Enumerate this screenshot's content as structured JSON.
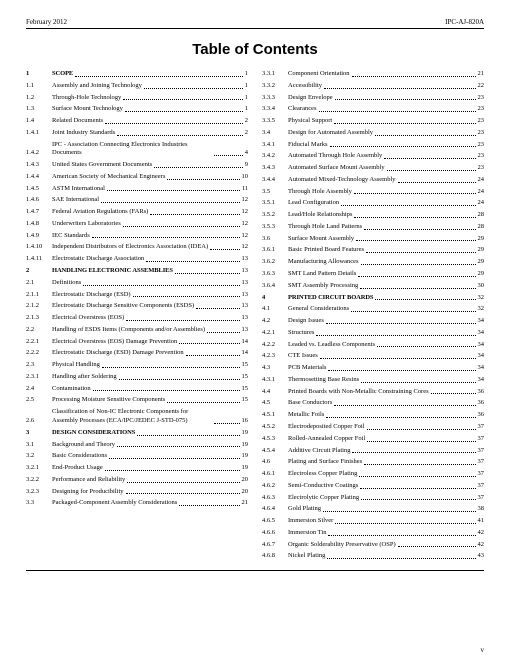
{
  "header": {
    "left": "February 2012",
    "right": "IPC-AJ-820A"
  },
  "title": "Table of Contents",
  "footer_marker": "v",
  "left_column": [
    {
      "t": "section",
      "num": "1",
      "text": "SCOPE",
      "page": "1"
    },
    {
      "t": "entry",
      "num": "1.1",
      "text": "Assembly and Joining Technology",
      "page": "1"
    },
    {
      "t": "entry",
      "num": "1.2",
      "text": "Through-Hole Technology",
      "page": "1"
    },
    {
      "t": "entry",
      "num": "1.3",
      "text": "Surface Mount Technology",
      "page": "1"
    },
    {
      "t": "entry",
      "num": "1.4",
      "text": "Related Documents",
      "page": "2"
    },
    {
      "t": "entry",
      "num": "1.4.1",
      "text": "Joint Industry Standards",
      "page": "2"
    },
    {
      "t": "entry",
      "num": "1.4.2",
      "text": "IPC - Association Connecting Electronics Industries Documents",
      "page": "4"
    },
    {
      "t": "entry",
      "num": "1.4.3",
      "text": "United States Government Documents",
      "page": "9"
    },
    {
      "t": "entry",
      "num": "1.4.4",
      "text": "American Society of Mechanical Engineers",
      "page": "10"
    },
    {
      "t": "entry",
      "num": "1.4.5",
      "text": "ASTM International",
      "page": "11"
    },
    {
      "t": "entry",
      "num": "1.4.6",
      "text": "SAE International",
      "page": "12"
    },
    {
      "t": "entry",
      "num": "1.4.7",
      "text": "Federal Aviation Regulations (FARs)",
      "page": "12"
    },
    {
      "t": "entry",
      "num": "1.4.8",
      "text": "Underwriters Laboratories",
      "page": "12"
    },
    {
      "t": "entry",
      "num": "1.4.9",
      "text": "IEC Standards",
      "page": "12"
    },
    {
      "t": "entry",
      "num": "1.4.10",
      "text": "Independent Distributors of Electronics Association (IDEA)",
      "page": "12"
    },
    {
      "t": "entry",
      "num": "1.4.11",
      "text": "Electrostatic Discharge Association",
      "page": "13"
    },
    {
      "t": "section",
      "num": "2",
      "text": "HANDLING ELECTRONIC ASSEMBLIES",
      "page": "13"
    },
    {
      "t": "entry",
      "num": "2.1",
      "text": "Definitions",
      "page": "13"
    },
    {
      "t": "entry",
      "num": "2.1.1",
      "text": "Electrostatic Discharge (ESD)",
      "page": "13"
    },
    {
      "t": "entry",
      "num": "2.1.2",
      "text": "Electrostatic Discharge Sensitive Components (ESDS)",
      "page": "13"
    },
    {
      "t": "entry",
      "num": "2.1.3",
      "text": "Electrical Overstress (EOS)",
      "page": "13"
    },
    {
      "t": "entry",
      "num": "2.2",
      "text": "Handling of ESDS Items (Components and/or Assemblies)",
      "page": "13"
    },
    {
      "t": "entry",
      "num": "2.2.1",
      "text": "Electrical Overstress (EOS) Damage Prevention",
      "page": "14"
    },
    {
      "t": "entry",
      "num": "2.2.2",
      "text": "Electrostatic Discharge (ESD) Damage Prevention",
      "page": "14"
    },
    {
      "t": "entry",
      "num": "2.3",
      "text": "Physical Handling",
      "page": "15"
    },
    {
      "t": "entry",
      "num": "2.3.1",
      "text": "Handling after Soldering",
      "page": "15"
    },
    {
      "t": "entry",
      "num": "2.4",
      "text": "Contamination",
      "page": "15"
    },
    {
      "t": "entry",
      "num": "2.5",
      "text": "Processing Moisture Sensitive Components",
      "page": "15"
    },
    {
      "t": "entry",
      "num": "2.6",
      "text": "Classification of Non-IC Electronic Components for Assembly Processes (ECA/IPC/JEDEC J-STD-075)",
      "page": "16"
    },
    {
      "t": "section",
      "num": "3",
      "text": "DESIGN CONSIDERATIONS",
      "page": "19"
    },
    {
      "t": "entry",
      "num": "3.1",
      "text": "Background and Theory",
      "page": "19"
    },
    {
      "t": "entry",
      "num": "3.2",
      "text": "Basic Considerations",
      "page": "19"
    },
    {
      "t": "entry",
      "num": "3.2.1",
      "text": "End-Product Usage",
      "page": "19"
    },
    {
      "t": "entry",
      "num": "3.2.2",
      "text": "Performance and Reliability",
      "page": "20"
    },
    {
      "t": "entry",
      "num": "3.2.3",
      "text": "Designing for Producibility",
      "page": "20"
    },
    {
      "t": "entry",
      "num": "3.3",
      "text": "Packaged-Component Assembly Considerations",
      "page": "21"
    }
  ],
  "right_column": [
    {
      "t": "entry",
      "num": "3.3.1",
      "text": "Component Orientation",
      "page": "21"
    },
    {
      "t": "entry",
      "num": "3.3.2",
      "text": "Accessibility",
      "page": "22"
    },
    {
      "t": "entry",
      "num": "3.3.3",
      "text": "Design Envelope",
      "page": "23"
    },
    {
      "t": "entry",
      "num": "3.3.4",
      "text": "Clearances",
      "page": "23"
    },
    {
      "t": "entry",
      "num": "3.3.5",
      "text": "Physical Support",
      "page": "23"
    },
    {
      "t": "entry",
      "num": "3.4",
      "text": "Design for Automated Assembly",
      "page": "23"
    },
    {
      "t": "entry",
      "num": "3.4.1",
      "text": "Fiducial Marks",
      "page": "23"
    },
    {
      "t": "entry",
      "num": "3.4.2",
      "text": "Automated Through Hole Assembly",
      "page": "23"
    },
    {
      "t": "entry",
      "num": "3.4.3",
      "text": "Automated Surface Mount Assembly",
      "page": "23"
    },
    {
      "t": "entry",
      "num": "3.4.4",
      "text": "Automated Mixed-Technology Assembly",
      "page": "24"
    },
    {
      "t": "entry",
      "num": "3.5",
      "text": "Through Hole Assembly",
      "page": "24"
    },
    {
      "t": "entry",
      "num": "3.5.1",
      "text": "Lead Configuration",
      "page": "24"
    },
    {
      "t": "entry",
      "num": "3.5.2",
      "text": "Lead/Hole Relationships",
      "page": "28"
    },
    {
      "t": "entry",
      "num": "3.5.3",
      "text": "Through Hole Land Patterns",
      "page": "28"
    },
    {
      "t": "entry",
      "num": "3.6",
      "text": "Surface Mount Assembly",
      "page": "29"
    },
    {
      "t": "entry",
      "num": "3.6.1",
      "text": "Basic Printed Board Features",
      "page": "29"
    },
    {
      "t": "entry",
      "num": "3.6.2",
      "text": "Manufacturing Allowances",
      "page": "29"
    },
    {
      "t": "entry",
      "num": "3.6.3",
      "text": "SMT Land Pattern Details",
      "page": "29"
    },
    {
      "t": "entry",
      "num": "3.6.4",
      "text": "SMT Assembly Processing",
      "page": "30"
    },
    {
      "t": "section",
      "num": "4",
      "text": "PRINTED CIRCUIT BOARDS",
      "page": "32"
    },
    {
      "t": "entry",
      "num": "4.1",
      "text": "General Considerations",
      "page": "32"
    },
    {
      "t": "entry",
      "num": "4.2",
      "text": "Design Issues",
      "page": "34"
    },
    {
      "t": "entry",
      "num": "4.2.1",
      "text": "Structures",
      "page": "34"
    },
    {
      "t": "entry",
      "num": "4.2.2",
      "text": "Leaded vs. Leadless Components",
      "page": "34"
    },
    {
      "t": "entry",
      "num": "4.2.3",
      "text": "CTE Issues",
      "page": "34"
    },
    {
      "t": "entry",
      "num": "4.3",
      "text": "PCB Materials",
      "page": "34"
    },
    {
      "t": "entry",
      "num": "4.3.1",
      "text": "Thermosetting Base Resins",
      "page": "34"
    },
    {
      "t": "entry",
      "num": "4.4",
      "text": "Printed Boards with Non-Metallic Constraining Cores",
      "page": "36"
    },
    {
      "t": "entry",
      "num": "4.5",
      "text": "Base Conductors",
      "page": "36"
    },
    {
      "t": "entry",
      "num": "4.5.1",
      "text": "Metallic Foils",
      "page": "36"
    },
    {
      "t": "entry",
      "num": "4.5.2",
      "text": "Electrodeposited Copper Foil",
      "page": "37"
    },
    {
      "t": "entry",
      "num": "4.5.3",
      "text": "Rolled-Annealed Copper Foil",
      "page": "37"
    },
    {
      "t": "entry",
      "num": "4.5.4",
      "text": "Additive Circuit Plating",
      "page": "37"
    },
    {
      "t": "entry",
      "num": "4.6",
      "text": "Plating and Surface Finishes",
      "page": "37"
    },
    {
      "t": "entry",
      "num": "4.6.1",
      "text": "Electroless Copper Plating",
      "page": "37"
    },
    {
      "t": "entry",
      "num": "4.6.2",
      "text": "Semi-Conductive Coatings",
      "page": "37"
    },
    {
      "t": "entry",
      "num": "4.6.3",
      "text": "Electrolytic Copper Plating",
      "page": "37"
    },
    {
      "t": "entry",
      "num": "4.6.4",
      "text": "Gold Plating",
      "page": "38"
    },
    {
      "t": "entry",
      "num": "4.6.5",
      "text": "Immersion Silver",
      "page": "41"
    },
    {
      "t": "entry",
      "num": "4.6.6",
      "text": "Immersion Tin",
      "page": "42"
    },
    {
      "t": "entry",
      "num": "4.6.7",
      "text": "Organic Solderability Preservative (OSP)",
      "page": "42"
    },
    {
      "t": "entry",
      "num": "4.6.8",
      "text": "Nickel Plating",
      "page": "43"
    }
  ]
}
